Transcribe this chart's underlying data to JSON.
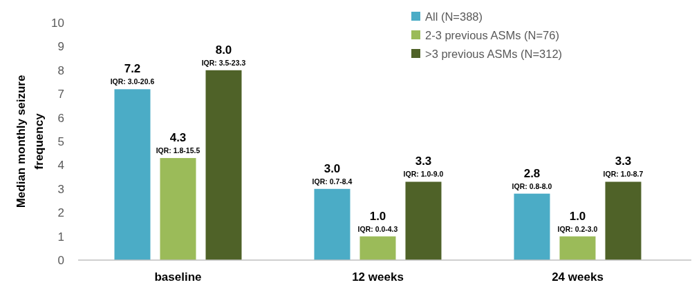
{
  "chart_data": {
    "type": "bar",
    "ylabel": "Median monthly seizure frequency",
    "categories": [
      "baseline",
      "12 weeks",
      "24 weeks"
    ],
    "series": [
      {
        "name": "All (N=388)",
        "color": "#4bacc6",
        "values": [
          7.2,
          3.0,
          2.8
        ],
        "value_labels": [
          "7.2",
          "3.0",
          "2.8"
        ]
      },
      {
        "name": "2-3 previous ASMs (N=76)",
        "color": "#9bbb59",
        "values": [
          4.3,
          1.0,
          1.0
        ],
        "value_labels": [
          "4.3",
          "1.0",
          "1.0"
        ]
      },
      {
        "name": ">3 previous ASMs (N=312)",
        "color": "#4f6228",
        "values": [
          8.0,
          3.3,
          3.3
        ],
        "value_labels": [
          "8.0",
          "3.3",
          "3.3"
        ]
      }
    ],
    "ylim": [
      0,
      10
    ],
    "yticks": [
      0,
      1,
      2,
      3,
      4,
      5,
      6,
      7,
      8,
      9,
      10
    ],
    "grid": false,
    "legend": "top right",
    "annotations": [
      "IQR: 3.0-20.6",
      "IQR: 1.8-15.5",
      "IQR: 3.5-23.3",
      "IQR: 0.7-8.4",
      "IQR: 0.0-4.3",
      "IQR: 1.0-9.0",
      "IQR: 0.8-8.0",
      "IQR: 0.2-3.0",
      "IQR: 1.0-8.7"
    ]
  }
}
